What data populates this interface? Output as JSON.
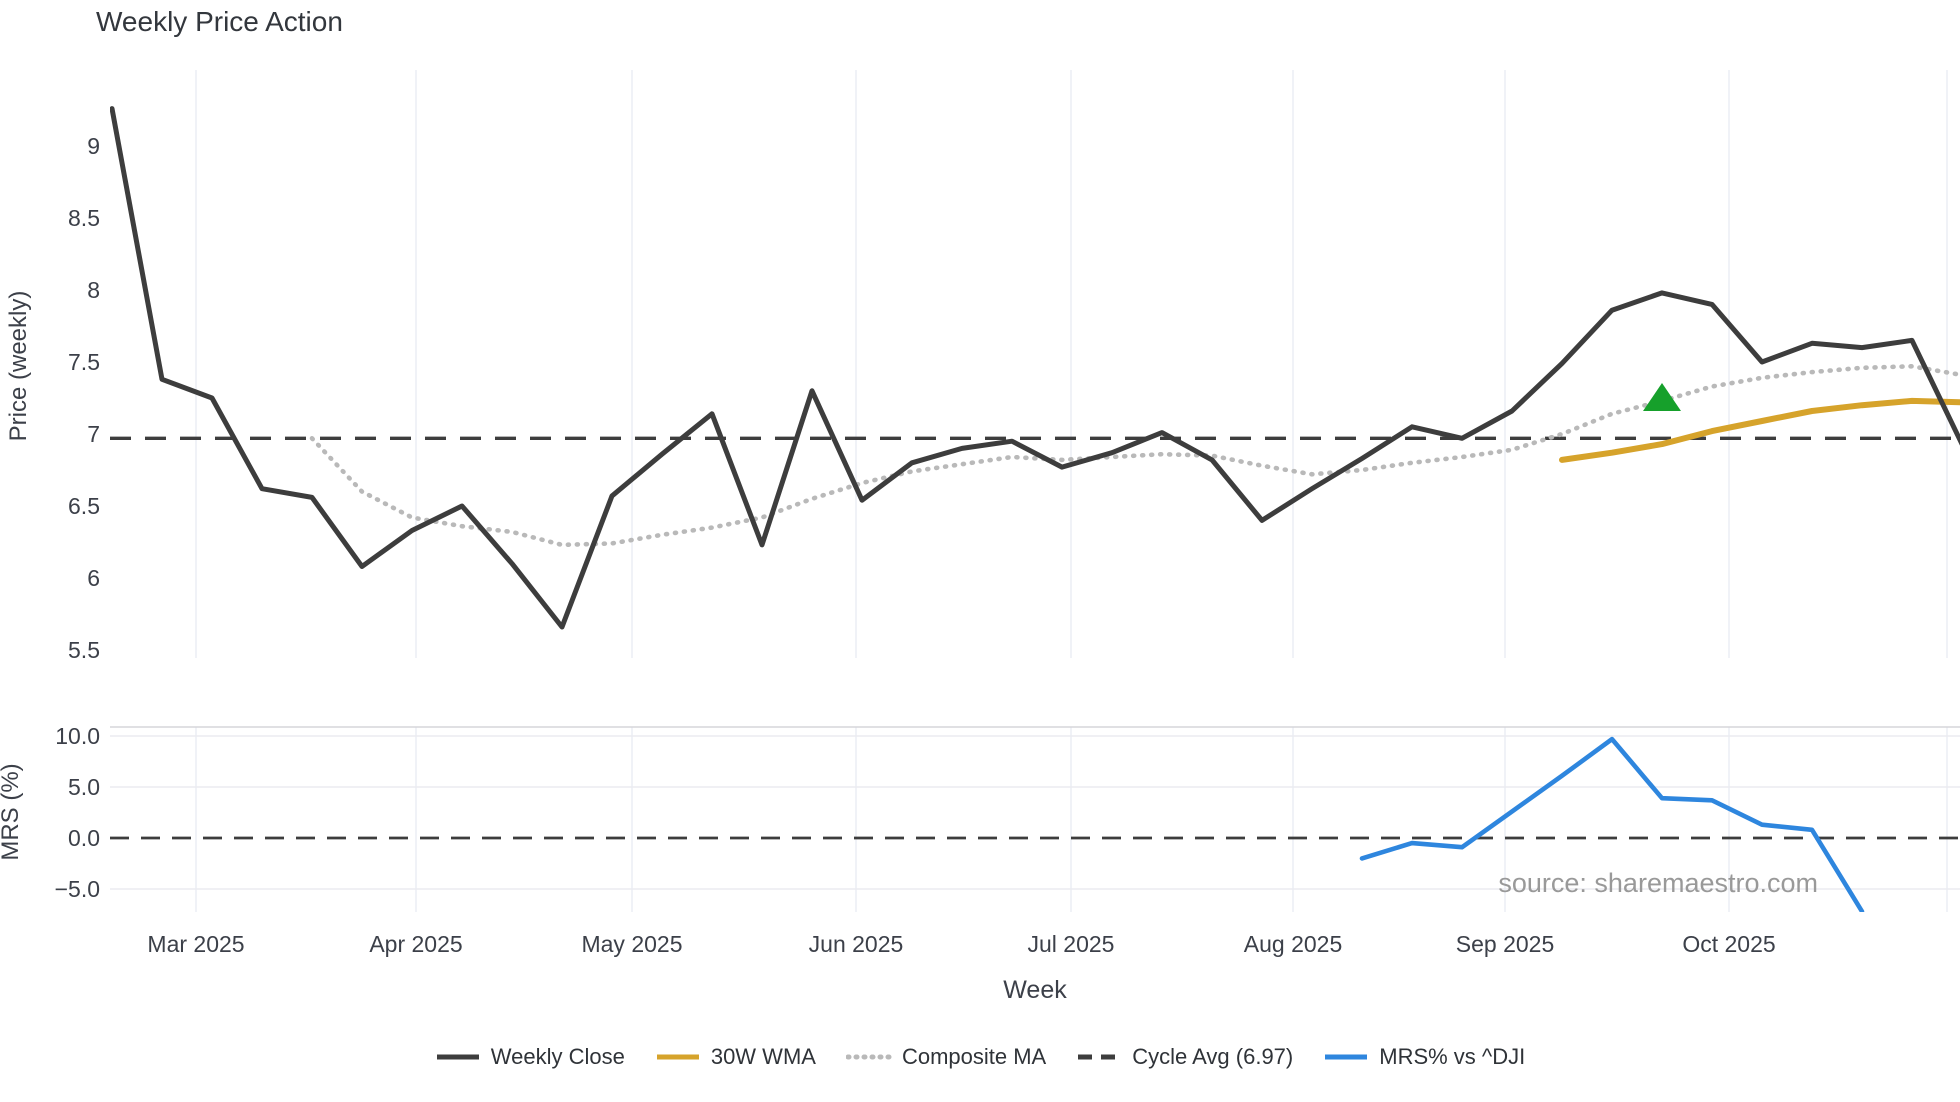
{
  "title": "Weekly Price Action",
  "source_note": "source: sharemaestro.com",
  "colors": {
    "weekly_close": "#3d3d3d",
    "wma": "#d6a32b",
    "composite": "#b9b9b9",
    "cycle_avg": "#3d3d3d",
    "mrs": "#2e86de",
    "signal_marker": "#16a02b",
    "gridline": "#eceff5",
    "mrs_gridline": "#ebebf0",
    "mrs_top_spine": "#d5d5da",
    "tick_text": "#3c4049",
    "source_text": "#999999"
  },
  "legend": [
    {
      "label": "Weekly Close",
      "swatch": "solid",
      "color": "#3d3d3d"
    },
    {
      "label": "30W WMA",
      "swatch": "solid",
      "color": "#d6a32b"
    },
    {
      "label": "Composite MA",
      "swatch": "dotted",
      "color": "#b9b9b9"
    },
    {
      "label": "Cycle Avg (6.97)",
      "swatch": "dashed",
      "color": "#3d3d3d"
    },
    {
      "label": "MRS% vs ^DJI",
      "swatch": "solid",
      "color": "#2e86de"
    }
  ],
  "chart_data": [
    {
      "type": "line",
      "title": "Weekly Price Action",
      "xlabel": "Week",
      "ylabel": "Price (weekly)",
      "x_is_weekly_time": true,
      "x_tick_labels": [
        "Mar 2025",
        "Apr 2025",
        "May 2025",
        "Jun 2025",
        "Jul 2025",
        "Aug 2025",
        "Sep 2025",
        "Oct 2025",
        ""
      ],
      "x_tick_week_positions": [
        1.68,
        6.08,
        10.4,
        14.88,
        19.18,
        23.62,
        27.86,
        32.34,
        36.7
      ],
      "y_tick_labels": [
        "9",
        "8.5",
        "8",
        "7.5",
        "7",
        "6.5",
        "6",
        "5.5"
      ],
      "y_ticks": [
        9,
        8.5,
        8,
        7.5,
        7,
        6.5,
        6,
        5.5
      ],
      "ylim": [
        5.44,
        9.56
      ],
      "grid": "vertical-only",
      "legend_position": "bottom-center",
      "series": [
        {
          "name": "Weekly Close",
          "week_start": 0,
          "values": [
            9.26,
            7.38,
            7.25,
            6.62,
            6.56,
            6.08,
            6.33,
            6.5,
            6.1,
            5.66,
            6.57,
            6.86,
            7.14,
            6.23,
            7.3,
            6.54,
            6.8,
            6.9,
            6.95,
            6.77,
            6.87,
            7.01,
            6.82,
            6.4,
            6.62,
            6.83,
            7.05,
            6.97,
            7.16,
            7.49,
            7.86,
            7.98,
            7.9,
            7.5,
            7.63,
            7.6,
            7.65,
            6.93
          ]
        },
        {
          "name": "Composite MA",
          "week_start": 4,
          "values": [
            6.97,
            6.6,
            6.42,
            6.36,
            6.32,
            6.23,
            6.24,
            6.3,
            6.35,
            6.42,
            6.55,
            6.66,
            6.74,
            6.79,
            6.84,
            6.82,
            6.84,
            6.86,
            6.85,
            6.78,
            6.72,
            6.75,
            6.8,
            6.84,
            6.89,
            7.0,
            7.14,
            7.23,
            7.33,
            7.39,
            7.43,
            7.46,
            7.47,
            7.41
          ]
        },
        {
          "name": "30W WMA",
          "week_start": 29,
          "values": [
            6.82,
            6.87,
            6.93,
            7.02,
            7.09,
            7.16,
            7.2,
            7.23,
            7.22
          ]
        },
        {
          "name": "Cycle Avg",
          "constant": 6.97
        }
      ],
      "marker": {
        "shape": "triangle-up",
        "name": "buy-signal",
        "week": 31,
        "value": 7.25
      }
    },
    {
      "type": "line",
      "ylabel": "MRS (%)",
      "y_tick_labels": [
        "10.0",
        "5.0",
        "0.0",
        "−5.0"
      ],
      "y_ticks": [
        10,
        5,
        0,
        -5
      ],
      "ylim": [
        -7.3,
        10.9
      ],
      "grid": "both",
      "zero_line": 0,
      "series": [
        {
          "name": "MRS% vs ^DJI",
          "week_start": 25,
          "values": [
            -2.0,
            -0.5,
            -0.9,
            2.6,
            6.1,
            9.7,
            3.9,
            3.7,
            1.3,
            0.8,
            -7.2
          ]
        }
      ]
    }
  ]
}
